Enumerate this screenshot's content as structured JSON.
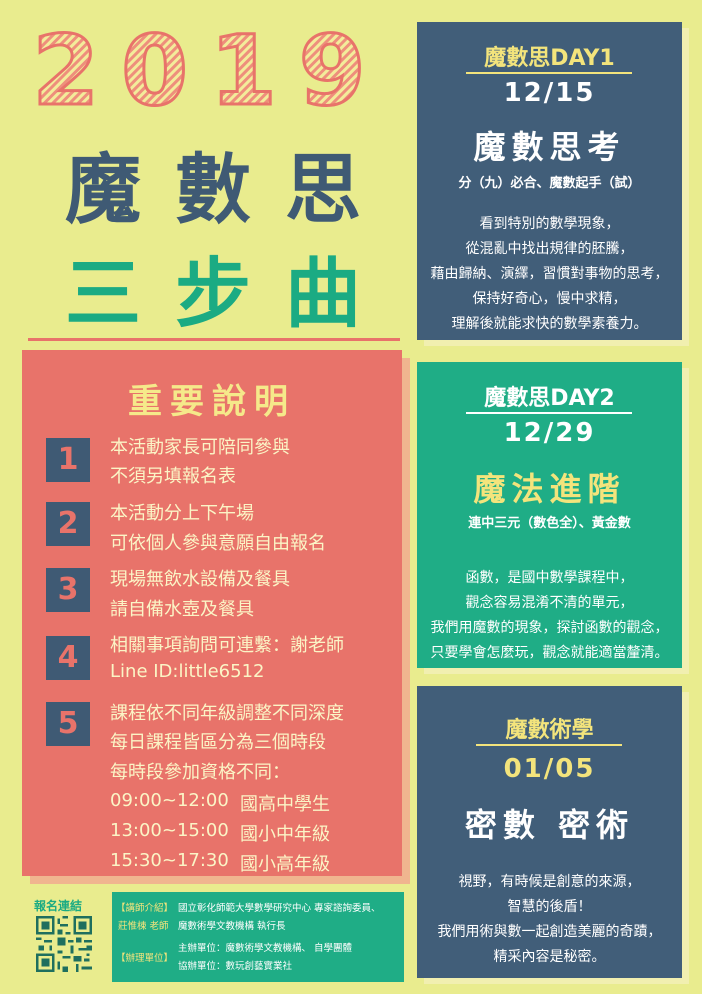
{
  "title": {
    "year": "2019",
    "line1": "魔數思",
    "line2": "三步曲"
  },
  "notes": {
    "heading": "重要說明",
    "items": [
      {
        "num": "1",
        "lines": [
          "本活動家長可陪同參與",
          "不須另填報名表"
        ]
      },
      {
        "num": "2",
        "lines": [
          "本活動分上下午場",
          "可依個人參與意願自由報名"
        ]
      },
      {
        "num": "3",
        "lines": [
          "現場無飲水設備及餐具",
          "請自備水壺及餐具"
        ]
      },
      {
        "num": "4",
        "lines": [
          "相關事項詢問可連繫：謝老師",
          "Line ID:little6512"
        ]
      },
      {
        "num": "5",
        "lines": [
          "課程依不同年級調整不同深度",
          "每日課程皆區分為三個時段",
          "每時段參加資格不同："
        ]
      }
    ],
    "schedule": [
      {
        "time": "09:00~12:00",
        "who": "國高中學生"
      },
      {
        "time": "13:00~15:00",
        "who": "國小中年級"
      },
      {
        "time": "15:30~17:30",
        "who": "國小高年級"
      }
    ]
  },
  "days": [
    {
      "label": "魔數思DAY1",
      "date_a": "12",
      "date_b": "15",
      "title": "魔數思考",
      "subtitle": "分（九）必合、魔數起手（試）",
      "desc": [
        "看到特別的數學現象，",
        "從混亂中找出規律的胚騰，",
        "藉由歸納、演繹，習慣對事物的思考，",
        "保持好奇心，慢中求精，",
        "理解後就能求快的數學素養力。"
      ]
    },
    {
      "label": "魔數思DAY2",
      "date_a": "12",
      "date_b": "29",
      "title": "魔法進階",
      "subtitle": "連中三元（數色全）、黃金數",
      "desc": [
        "函數，是國中數學課程中，",
        "觀念容易混淆不清的單元，",
        "我們用魔數的現象，探討函數的觀念，",
        "只要學會怎麼玩，觀念就能適當釐清。"
      ]
    },
    {
      "label": "魔數術學",
      "date_a": "01",
      "date_b": "05",
      "title": "密數 密術",
      "subtitle": "",
      "desc": [
        "視野，有時候是創意的來源，",
        "智慧的後盾！",
        "我們用術與數一起創造美麗的奇蹟，",
        "精采內容是秘密。"
      ]
    }
  ],
  "footer": {
    "reg_label": "報名連結",
    "lecturer_tag": "【講師介紹】",
    "lecturer_name": "莊惟棟 老師",
    "lecturer_info1": "國立彰化師範大學數學研究中心 專家諮詢委員、",
    "lecturer_info2": "魔數術學文教機構 執行長",
    "org_tag": "【辦理單位】",
    "host": "主辦單位：魔數術學文教機構、 自學團體",
    "co": "協辦單位：數玩創藝實業社"
  },
  "colors": {
    "background": "#e9ec8e",
    "coral": "#e8736a",
    "navy": "#415e79",
    "green": "#1fad86",
    "yellow": "#f3e47c"
  }
}
